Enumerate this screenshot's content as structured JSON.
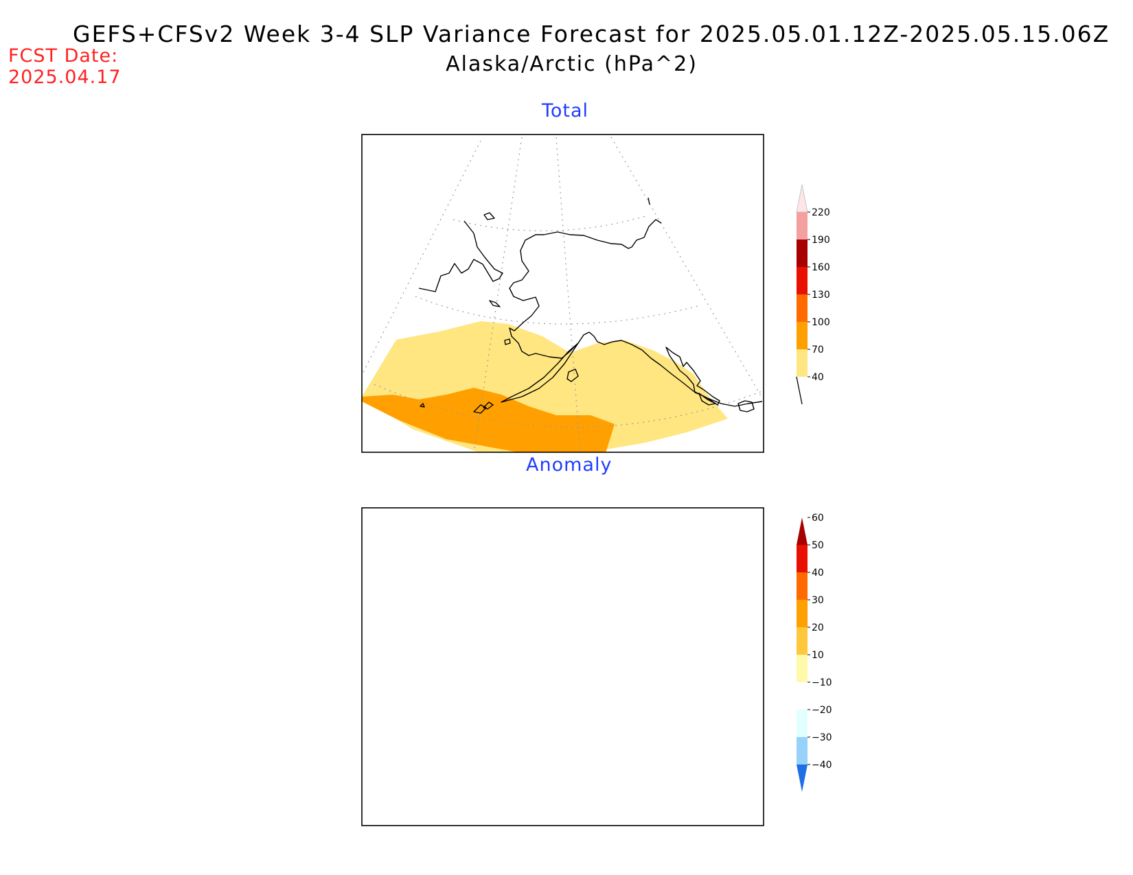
{
  "title": "GEFS+CFSv2 Week 3-4 SLP Variance Forecast for 2025.05.01.12Z-2025.05.15.06Z",
  "subtitle": "Alaska/Arctic (hPa^2)",
  "fcst_date": {
    "label": "FCST Date:",
    "value": "2025.04.17"
  },
  "panels": [
    {
      "title": "Total",
      "legend": {
        "labels": [
          "40",
          "70",
          "100",
          "130",
          "160",
          "190",
          "220"
        ],
        "colors": [
          "#ffe680",
          "#ffa000",
          "#ff6a00",
          "#e81000",
          "#a80000",
          "#f4a0a0",
          "#ffe6e6"
        ]
      }
    },
    {
      "title": "Anomaly",
      "legend": {
        "labels": [
          "-40",
          "-30",
          "-20",
          "-10",
          "10",
          "20",
          "30",
          "40",
          "50",
          "60"
        ],
        "colors": [
          "#1e6ee6",
          "#96d2fa",
          "#e1ffff",
          "#ffffff",
          "#fffaaa",
          "#ffc83c",
          "#ffa000",
          "#ff6a00",
          "#e81000",
          "#a80000"
        ]
      }
    }
  ]
}
